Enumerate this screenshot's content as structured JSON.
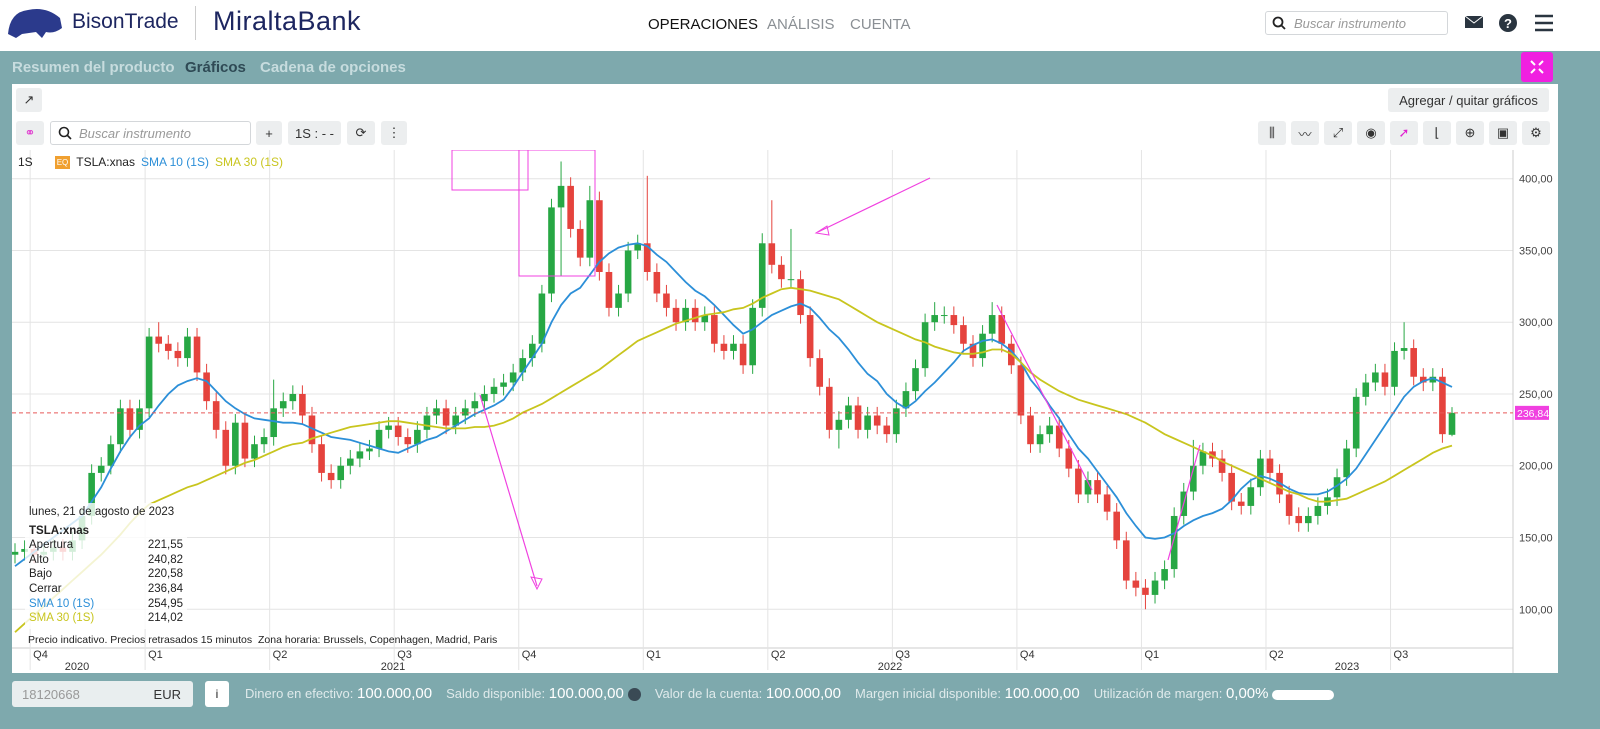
{
  "ui": {
    "brand": "BisonTrade",
    "bank": "MiraltaBank",
    "nav": [
      "OPERACIONES",
      "ANÁLISIS",
      "CUENTA"
    ],
    "search_placeholder": "Buscar instrumento",
    "tabs": [
      "Resumen del producto",
      "Gráficos",
      "Cadena de opciones"
    ],
    "add_charts": "Agregar / quitar gráficos",
    "toolbar_search": "Buscar instrumento",
    "interval": "1S : - -",
    "footer": {
      "account": "18120668",
      "currency": "EUR",
      "info": "i",
      "items": [
        {
          "label": "Dinero en efectivo:",
          "value": "100.000,00"
        },
        {
          "label": "Saldo disponible:",
          "value": "100.000,00"
        },
        {
          "label": "Valor de la cuenta:",
          "value": "100.000,00"
        },
        {
          "label": "Margen inicial disponible:",
          "value": "100.000,00"
        },
        {
          "label": "Utilización de margen:",
          "value": "0,00%"
        }
      ]
    }
  },
  "chart_data": {
    "type": "candlestick",
    "interval": "1S",
    "badge": "EQ",
    "symbol": "TSLA:xnas",
    "categories": [
      null,
      null,
      "Q4",
      null,
      null,
      null,
      null,
      null,
      null,
      null,
      null,
      null,
      null,
      null,
      "Q1",
      null,
      null,
      null,
      null,
      null,
      null,
      null,
      null,
      null,
      null,
      null,
      null,
      "Q2",
      null,
      null,
      null,
      null,
      null,
      null,
      null,
      null,
      null,
      null,
      null,
      null,
      "Q3",
      null,
      null,
      null,
      null,
      null,
      null,
      null,
      null,
      null,
      null,
      null,
      null,
      "Q4",
      null,
      null,
      null,
      null,
      null,
      null,
      null,
      null,
      null,
      null,
      null,
      null,
      "Q1",
      null,
      null,
      null,
      null,
      null,
      null,
      null,
      null,
      null,
      null,
      null,
      null,
      "Q2",
      null,
      null,
      null,
      null,
      null,
      null,
      null,
      null,
      null,
      null,
      null,
      null,
      "Q3",
      null,
      null,
      null,
      null,
      null,
      null,
      null,
      null,
      null,
      null,
      null,
      null,
      "Q4",
      null,
      null,
      null,
      null,
      null,
      null,
      null,
      null,
      null,
      null,
      null,
      null,
      "Q1",
      null,
      null,
      null,
      null,
      null,
      null,
      null,
      null,
      null,
      null,
      null,
      null,
      "Q2",
      null,
      null,
      null,
      null,
      null,
      null,
      null,
      null,
      null,
      null,
      null,
      null,
      "Q3",
      null,
      null,
      null,
      null,
      null,
      null
    ],
    "years": [
      "2020",
      "2021",
      "2022",
      "2023"
    ],
    "open": [
      138,
      140,
      142,
      138,
      140,
      143,
      140,
      148,
      165,
      195,
      200,
      215,
      240,
      225,
      240,
      290,
      285,
      280,
      275,
      290,
      265,
      245,
      225,
      200,
      230,
      205,
      215,
      220,
      240,
      245,
      250,
      235,
      215,
      195,
      190,
      200,
      205,
      210,
      212,
      225,
      228,
      220,
      215,
      225,
      235,
      240,
      228,
      235,
      240,
      245,
      250,
      255,
      258,
      265,
      275,
      285,
      320,
      380,
      395,
      365,
      345,
      385,
      335,
      310,
      320,
      350,
      355,
      335,
      320,
      310,
      300,
      310,
      300,
      305,
      285,
      280,
      285,
      270,
      310,
      355,
      340,
      330,
      330,
      305,
      275,
      255,
      225,
      232,
      242,
      225,
      235,
      228,
      222,
      240,
      252,
      268,
      300,
      305,
      305,
      298,
      285,
      275,
      292,
      305,
      285,
      270,
      235,
      215,
      222,
      228,
      212,
      198,
      180,
      190,
      180,
      168,
      148,
      120,
      115,
      110,
      120,
      128,
      165,
      182,
      200,
      210,
      205,
      195,
      175,
      172,
      185,
      205,
      195,
      180,
      165,
      160,
      165,
      172,
      178,
      192,
      212,
      248,
      258,
      265,
      255,
      280,
      282,
      262,
      258,
      262,
      221.55
    ],
    "high": [
      146,
      148,
      148,
      146,
      149,
      149,
      154,
      171,
      201,
      206,
      221,
      246,
      246,
      246,
      296,
      300,
      291,
      286,
      296,
      296,
      271,
      251,
      231,
      236,
      236,
      221,
      226,
      260,
      251,
      256,
      256,
      241,
      221,
      201,
      206,
      211,
      216,
      218,
      231,
      234,
      234,
      226,
      231,
      241,
      246,
      246,
      241,
      246,
      251,
      256,
      261,
      264,
      271,
      281,
      291,
      326,
      386,
      412,
      401,
      371,
      395,
      391,
      341,
      326,
      356,
      361,
      402,
      341,
      326,
      316,
      316,
      316,
      311,
      311,
      291,
      291,
      291,
      316,
      362,
      385,
      346,
      365,
      336,
      311,
      281,
      261,
      238,
      248,
      248,
      241,
      241,
      234,
      246,
      258,
      274,
      306,
      314,
      311,
      311,
      304,
      291,
      298,
      314,
      311,
      291,
      276,
      241,
      228,
      234,
      234,
      218,
      204,
      196,
      196,
      186,
      174,
      154,
      126,
      121,
      126,
      134,
      171,
      188,
      218,
      216,
      216,
      211,
      201,
      181,
      191,
      211,
      211,
      201,
      186,
      171,
      171,
      178,
      184,
      198,
      218,
      254,
      264,
      271,
      271,
      286,
      300,
      288,
      268,
      268,
      268,
      240.82
    ],
    "low": [
      132,
      134,
      132,
      132,
      134,
      134,
      134,
      142,
      159,
      189,
      194,
      209,
      219,
      219,
      234,
      279,
      274,
      269,
      269,
      259,
      239,
      219,
      194,
      194,
      199,
      199,
      209,
      214,
      234,
      239,
      229,
      209,
      189,
      184,
      184,
      194,
      199,
      204,
      206,
      219,
      214,
      209,
      209,
      219,
      229,
      222,
      222,
      229,
      234,
      239,
      244,
      249,
      252,
      259,
      269,
      279,
      314,
      332,
      359,
      339,
      339,
      329,
      304,
      304,
      314,
      344,
      329,
      314,
      304,
      294,
      294,
      294,
      294,
      279,
      274,
      274,
      264,
      264,
      304,
      334,
      324,
      324,
      299,
      269,
      249,
      219,
      212,
      226,
      219,
      219,
      222,
      216,
      216,
      234,
      246,
      262,
      294,
      299,
      292,
      279,
      269,
      269,
      286,
      279,
      264,
      229,
      209,
      209,
      216,
      206,
      192,
      174,
      174,
      174,
      162,
      142,
      114,
      109,
      100,
      104,
      114,
      122,
      159,
      176,
      194,
      199,
      189,
      169,
      166,
      166,
      179,
      189,
      174,
      159,
      154,
      154,
      159,
      166,
      172,
      186,
      206,
      242,
      252,
      249,
      249,
      274,
      256,
      252,
      252,
      216,
      220.58
    ],
    "close": [
      140,
      142,
      138,
      140,
      143,
      140,
      148,
      165,
      195,
      200,
      215,
      240,
      225,
      240,
      290,
      285,
      280,
      275,
      290,
      265,
      245,
      225,
      200,
      230,
      205,
      215,
      220,
      240,
      245,
      250,
      235,
      215,
      195,
      190,
      200,
      205,
      210,
      212,
      225,
      228,
      220,
      215,
      225,
      235,
      240,
      228,
      235,
      240,
      245,
      250,
      255,
      258,
      265,
      275,
      285,
      320,
      380,
      395,
      365,
      345,
      385,
      335,
      310,
      320,
      350,
      355,
      335,
      320,
      310,
      300,
      310,
      300,
      305,
      285,
      280,
      285,
      270,
      310,
      355,
      340,
      330,
      330,
      305,
      275,
      255,
      225,
      232,
      242,
      225,
      235,
      228,
      222,
      240,
      252,
      268,
      300,
      305,
      305,
      298,
      285,
      275,
      292,
      305,
      285,
      270,
      235,
      215,
      222,
      228,
      212,
      198,
      180,
      190,
      180,
      168,
      148,
      120,
      115,
      110,
      120,
      128,
      165,
      182,
      200,
      210,
      205,
      195,
      175,
      172,
      185,
      205,
      195,
      180,
      165,
      160,
      165,
      172,
      178,
      192,
      212,
      248,
      258,
      265,
      255,
      280,
      282,
      262,
      258,
      262,
      222,
      236.84
    ],
    "up_color": "#27a744",
    "down_color": "#e5433d",
    "series": [
      {
        "name": "SMA 10 (1S)",
        "color": "#2c8fd8",
        "values": [
          130,
          135,
          140,
          145,
          150,
          155,
          160,
          165,
          175,
          185,
          198,
          210,
          220,
          228,
          233,
          242,
          250,
          256,
          259,
          261,
          259,
          252,
          245,
          240,
          236,
          233,
          232,
          231,
          230,
          230,
          229,
          226,
          223,
          220,
          219,
          218,
          216,
          214,
          212,
          210,
          209,
          212,
          215,
          218,
          220,
          224,
          228,
          232,
          236,
          239,
          242,
          246,
          255,
          265,
          275,
          285,
          300,
          312,
          320,
          324,
          333,
          342,
          348,
          352,
          354,
          355,
          353,
          347,
          342,
          335,
          328,
          322,
          318,
          312,
          305,
          298,
          292,
          295,
          300,
          305,
          308,
          311,
          313,
          310,
          303,
          295,
          289,
          281,
          272,
          264,
          259,
          250,
          244,
          240,
          245,
          252,
          258,
          265,
          272,
          280,
          284,
          287,
          288,
          285,
          280,
          272,
          260,
          252,
          242,
          233,
          222,
          212,
          205,
          196,
          187,
          178,
          167,
          158,
          150,
          149,
          150,
          153,
          158,
          162,
          165,
          167,
          170,
          176,
          184,
          190,
          193,
          191,
          188,
          184,
          181,
          180,
          180,
          182,
          186,
          191,
          198,
          208,
          218,
          228,
          238,
          248,
          255,
          259,
          261,
          258,
          254.95
        ]
      },
      {
        "name": "SMA 30 (1S)",
        "color": "#c8c51e",
        "values": [
          84,
          90,
          96,
          102,
          108,
          114,
          120,
          126,
          132,
          138,
          145,
          152,
          160,
          167,
          173,
          176,
          179,
          182,
          185,
          187,
          190,
          193,
          196,
          199,
          202,
          204,
          207,
          210,
          213,
          215,
          216,
          219,
          221,
          223,
          225,
          227,
          228,
          229,
          230,
          231,
          231,
          230,
          229,
          228,
          227,
          226,
          226,
          226,
          227,
          227,
          228,
          230,
          233,
          237,
          240,
          243,
          247,
          251,
          255,
          259,
          263,
          267,
          272,
          277,
          282,
          287,
          290,
          293,
          296,
          299,
          301,
          303,
          305,
          306,
          307,
          309,
          310,
          313,
          317,
          320,
          323,
          324,
          323,
          322,
          320,
          318,
          316,
          312,
          308,
          304,
          300,
          297,
          294,
          291,
          288,
          286,
          283,
          281,
          279,
          278,
          278,
          279,
          281,
          281,
          278,
          272,
          265,
          260,
          256,
          252,
          249,
          246,
          244,
          242,
          240,
          238,
          236,
          233,
          230,
          226,
          222,
          219,
          216,
          213,
          210,
          207,
          203,
          200,
          197,
          194,
          191,
          188,
          185,
          182,
          180,
          177,
          175,
          175,
          176,
          177,
          180,
          183,
          186,
          189,
          193,
          197,
          201,
          205,
          209,
          212,
          214.02
        ]
      }
    ],
    "last_price": {
      "value": 236.84,
      "label": "236,84"
    },
    "ylim": [
      73,
      420
    ],
    "yticks": [
      {
        "value": 100,
        "label": "100,00"
      },
      {
        "value": 150,
        "label": "150,00"
      },
      {
        "value": 200,
        "label": "200,00"
      },
      {
        "value": 250,
        "label": "250,00"
      },
      {
        "value": 300,
        "label": "300,00"
      },
      {
        "value": 350,
        "label": "350,00"
      },
      {
        "value": 400,
        "label": "400,00"
      }
    ],
    "grid": true,
    "tooltip": {
      "date": "lunes, 21 de agosto de 2023",
      "symbol": "TSLA:xnas",
      "rows": [
        {
          "label": "Apertura",
          "value": "221,55"
        },
        {
          "label": "Alto",
          "value": "240,82"
        },
        {
          "label": "Bajo",
          "value": "220,58"
        },
        {
          "label": "Cerrar",
          "value": "236,84"
        },
        {
          "label": "SMA 10 (1S)",
          "value": "254,95"
        },
        {
          "label": "SMA 30 (1S)",
          "value": "214,02"
        }
      ]
    },
    "notes": [
      "Precio indicativo. Precios retrasados 15 minutos",
      "Zona horaria: Brussels, Copenhagen, Madrid, Paris"
    ]
  }
}
